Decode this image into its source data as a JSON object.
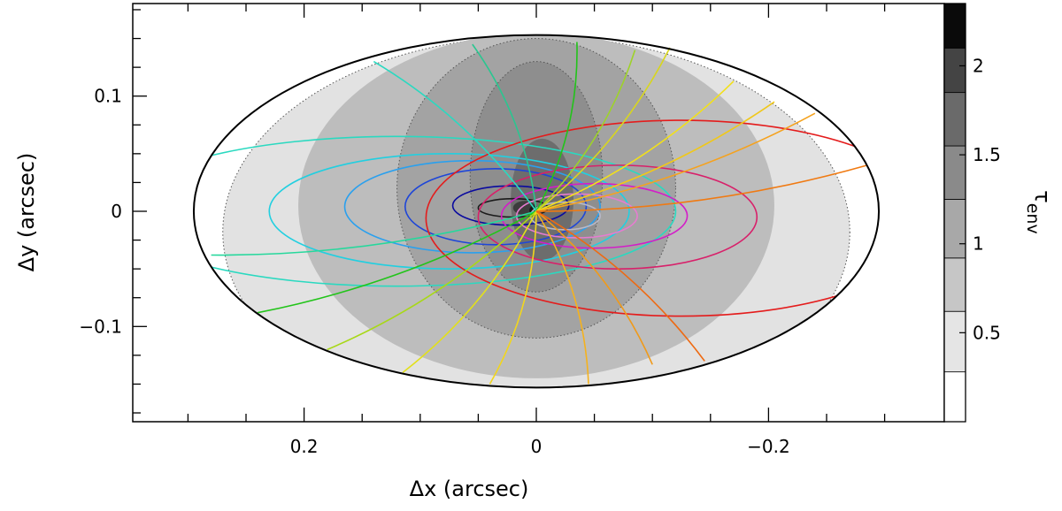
{
  "chart_data": {
    "type": "contour",
    "xlabel": "Δx (arcsec)",
    "ylabel": "Δy (arcsec)",
    "x_reversed": true,
    "xlim": [
      0.35,
      -0.35
    ],
    "ylim": [
      -0.18,
      0.177
    ],
    "x_ticks": [
      {
        "value": 0.2,
        "label": "0.2"
      },
      {
        "value": 0,
        "label": "0"
      },
      {
        "value": -0.2,
        "label": "−0.2"
      }
    ],
    "x_minor_step": 0.05,
    "y_ticks": [
      {
        "value": 0.1,
        "label": "0.1"
      },
      {
        "value": 0,
        "label": "0"
      },
      {
        "value": -0.1,
        "label": "−0.1"
      }
    ],
    "y_minor_step": 0.025,
    "outer_ellipse": {
      "cx": 0,
      "cy": 0,
      "rx": 0.295,
      "ry": 0.153
    },
    "tau_regions": [
      {
        "level": 0.25,
        "color": "#ffffff",
        "shape": "full_ellipse"
      },
      {
        "level": 0.5,
        "color": "#e2e2e2",
        "cx": 0,
        "cy": -0.018,
        "rx": 0.27,
        "ry": 0.17,
        "dotted": true
      },
      {
        "level": 0.75,
        "color": "#bdbdbd",
        "cx": 0,
        "cy": 0.005,
        "rx": 0.205,
        "ry": 0.15,
        "dotted": false
      },
      {
        "level": 1.0,
        "color": "#a3a3a3",
        "cx": 0,
        "cy": 0.02,
        "rx": 0.12,
        "ry": 0.13,
        "dotted": true
      },
      {
        "level": 1.25,
        "color": "#8e8e8e",
        "cx": 0,
        "cy": 0.03,
        "rx": 0.057,
        "ry": 0.1,
        "dotted": true
      },
      {
        "level": 1.5,
        "color": "#6d6d6d",
        "cx": -0.005,
        "cy": 0.01,
        "rx": 0.027,
        "ry": 0.053,
        "dotted": false
      },
      {
        "level": 2.0,
        "color": "#3c3c3c",
        "cx": 0.01,
        "cy": 0.003,
        "rx": 0.01,
        "ry": 0.006,
        "dotted": false
      },
      {
        "level": 2.25,
        "color": "#171717",
        "cx": 0.002,
        "cy": 0.001,
        "rx": 0.004,
        "ry": 0.004,
        "dotted": false
      }
    ],
    "loops": [
      {
        "color": "#1b1b1b",
        "cx": 0.02,
        "cy": 0.003,
        "rx": 0.03,
        "ry": 0.008
      },
      {
        "color": "#0a0a9f",
        "cx": 0.022,
        "cy": 0.005,
        "rx": 0.05,
        "ry": 0.017
      },
      {
        "color": "#1e46d8",
        "cx": 0.035,
        "cy": 0.004,
        "rx": 0.078,
        "ry": 0.033
      },
      {
        "color": "#2aa0ee",
        "cx": 0.055,
        "cy": 0.004,
        "rx": 0.11,
        "ry": 0.04
      },
      {
        "color": "#22cfe0",
        "cx": 0.075,
        "cy": 0.0,
        "rx": 0.155,
        "ry": 0.05
      },
      {
        "color": "#2ad9c0",
        "cx": 0.12,
        "cy": 0.0,
        "rx": 0.24,
        "ry": 0.065
      },
      {
        "color": "#b8b8c8",
        "cx": -0.025,
        "cy": -0.004,
        "rx": 0.03,
        "ry": 0.012
      },
      {
        "color": "#e67cd0",
        "cx": -0.035,
        "cy": -0.004,
        "rx": 0.052,
        "ry": 0.019
      },
      {
        "color": "#d31ec8",
        "cx": -0.05,
        "cy": -0.004,
        "rx": 0.08,
        "ry": 0.028
      },
      {
        "color": "#d8206a",
        "cx": -0.07,
        "cy": -0.005,
        "rx": 0.12,
        "ry": 0.045
      },
      {
        "color": "#e41c1c",
        "cx": -0.125,
        "cy": -0.006,
        "rx": 0.22,
        "ry": 0.085
      }
    ],
    "rays": [
      {
        "color": "#2ad9c0",
        "end": [
          0.14,
          0.13
        ],
        "bend": 0.02
      },
      {
        "color": "#2bc690",
        "end": [
          0.055,
          0.145
        ],
        "bend": 0.02
      },
      {
        "color": "#22c41a",
        "end": [
          -0.035,
          0.147
        ],
        "bend": 0.02
      },
      {
        "color": "#9ed22a",
        "end": [
          -0.085,
          0.14
        ],
        "bend": 0.02
      },
      {
        "color": "#d8d61e",
        "end": [
          -0.115,
          0.142
        ],
        "bend": 0.02
      },
      {
        "color": "#f2e01a",
        "end": [
          -0.17,
          0.113
        ],
        "bend": 0.02
      },
      {
        "color": "#f0c81a",
        "end": [
          -0.205,
          0.095
        ],
        "bend": 0.02
      },
      {
        "color": "#f5a21e",
        "end": [
          -0.24,
          0.085
        ],
        "bend": 0.02
      },
      {
        "color": "#f07a12",
        "end": [
          -0.285,
          0.04
        ],
        "bend": 0.02
      },
      {
        "color": "#26d89c",
        "end": [
          0.28,
          -0.038
        ],
        "bend": -0.02
      },
      {
        "color": "#22c41a",
        "end": [
          0.24,
          -0.088
        ],
        "bend": -0.02
      },
      {
        "color": "#a8d818",
        "end": [
          0.18,
          -0.12
        ],
        "bend": -0.02
      },
      {
        "color": "#e2e01a",
        "end": [
          0.115,
          -0.14
        ],
        "bend": -0.02
      },
      {
        "color": "#f2d61c",
        "end": [
          0.04,
          -0.15
        ],
        "bend": -0.02
      },
      {
        "color": "#f5b21e",
        "end": [
          -0.045,
          -0.15
        ],
        "bend": -0.02
      },
      {
        "color": "#f09a1a",
        "end": [
          -0.1,
          -0.133
        ],
        "bend": -0.02
      },
      {
        "color": "#ee6a12",
        "end": [
          -0.145,
          -0.13
        ],
        "bend": -0.02
      }
    ],
    "colorbar": {
      "label": "τ",
      "label_sub": "env",
      "vmin": 0.0,
      "vmax": 2.35,
      "bins": [
        {
          "from": 0.0,
          "to": 0.28,
          "color": "#ffffff"
        },
        {
          "from": 0.28,
          "to": 0.62,
          "color": "#e5e5e5"
        },
        {
          "from": 0.62,
          "to": 0.92,
          "color": "#c6c6c6"
        },
        {
          "from": 0.92,
          "to": 1.25,
          "color": "#a8a8a8"
        },
        {
          "from": 1.25,
          "to": 1.55,
          "color": "#8a8a8a"
        },
        {
          "from": 1.55,
          "to": 1.85,
          "color": "#6a6a6a"
        },
        {
          "from": 1.85,
          "to": 2.1,
          "color": "#444444"
        },
        {
          "from": 2.1,
          "to": 2.35,
          "color": "#0a0a0a"
        }
      ],
      "ticks": [
        {
          "value": 0.5,
          "label": "0.5"
        },
        {
          "value": 1,
          "label": "1"
        },
        {
          "value": 1.5,
          "label": "1.5"
        },
        {
          "value": 2,
          "label": "2"
        }
      ]
    }
  }
}
